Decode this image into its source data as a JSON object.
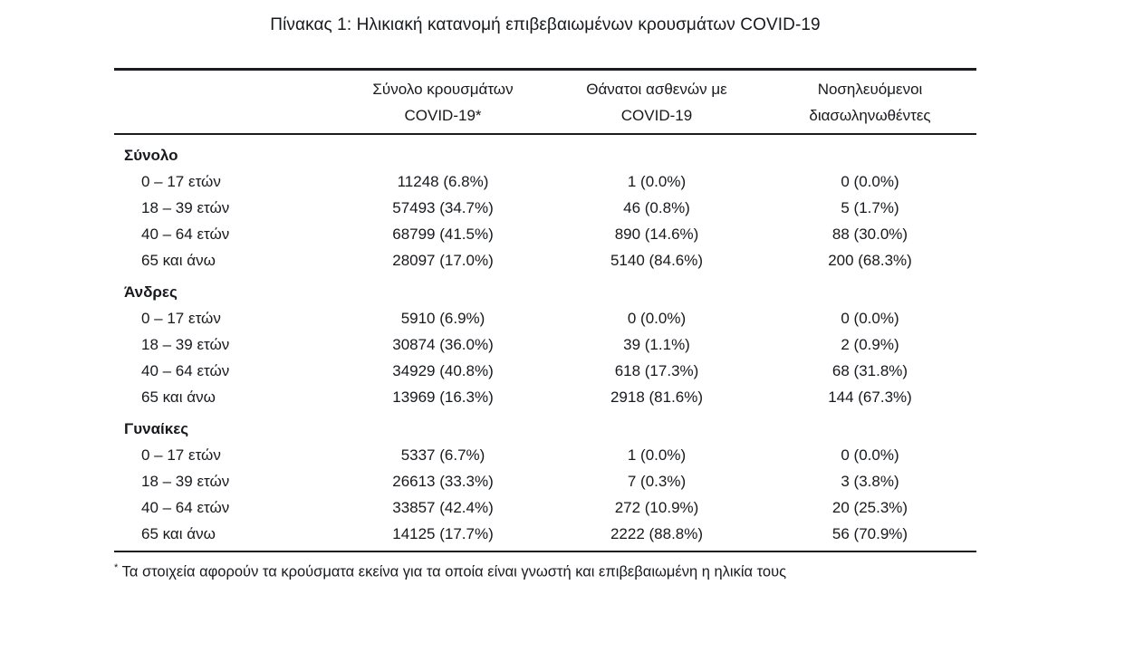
{
  "title": "Πίνακας 1: Ηλικιακή κατανομή επιβεβαιωμένων κρουσμάτων COVID-19",
  "text_color": "#17191d",
  "table": {
    "columns": [
      {
        "line1": "Σύνολο κρουσμάτων",
        "line2": "COVID-19*"
      },
      {
        "line1": "Θάνατοι ασθενών με",
        "line2": "COVID-19"
      },
      {
        "line1": "Νοσηλευόμενοι",
        "line2": "διασωληνωθέντες"
      }
    ],
    "sections": [
      {
        "label": "Σύνολο",
        "rows": [
          {
            "label": "0 – 17 ετών",
            "cases": "11248 (6.8%)",
            "deaths": "1 (0.0%)",
            "intubated": "0 (0.0%)"
          },
          {
            "label": "18 – 39 ετών",
            "cases": "57493 (34.7%)",
            "deaths": "46 (0.8%)",
            "intubated": "5 (1.7%)"
          },
          {
            "label": "40 – 64 ετών",
            "cases": "68799 (41.5%)",
            "deaths": "890 (14.6%)",
            "intubated": "88 (30.0%)"
          },
          {
            "label": "65 και άνω",
            "cases": "28097 (17.0%)",
            "deaths": "5140 (84.6%)",
            "intubated": "200 (68.3%)"
          }
        ]
      },
      {
        "label": "Άνδρες",
        "rows": [
          {
            "label": "0 – 17 ετών",
            "cases": "5910 (6.9%)",
            "deaths": "0 (0.0%)",
            "intubated": "0 (0.0%)"
          },
          {
            "label": "18 – 39 ετών",
            "cases": "30874 (36.0%)",
            "deaths": "39 (1.1%)",
            "intubated": "2 (0.9%)"
          },
          {
            "label": "40 – 64 ετών",
            "cases": "34929 (40.8%)",
            "deaths": "618 (17.3%)",
            "intubated": "68 (31.8%)"
          },
          {
            "label": "65 και άνω",
            "cases": "13969 (16.3%)",
            "deaths": "2918 (81.6%)",
            "intubated": "144 (67.3%)"
          }
        ]
      },
      {
        "label": "Γυναίκες",
        "rows": [
          {
            "label": "0 – 17 ετών",
            "cases": "5337 (6.7%)",
            "deaths": "1 (0.0%)",
            "intubated": "0 (0.0%)"
          },
          {
            "label": "18 – 39 ετών",
            "cases": "26613 (33.3%)",
            "deaths": "7 (0.3%)",
            "intubated": "3 (3.8%)"
          },
          {
            "label": "40 – 64 ετών",
            "cases": "33857 (42.4%)",
            "deaths": "272 (10.9%)",
            "intubated": "20 (25.3%)"
          },
          {
            "label": "65 και άνω",
            "cases": "14125 (17.7%)",
            "deaths": "2222 (88.8%)",
            "intubated": "56 (70.9%)"
          }
        ]
      }
    ]
  },
  "footnote": {
    "marker": "*",
    "text": " Τα στοιχεία αφορούν τα κρούσματα εκείνα για τα οποία είναι γνωστή και επιβεβαιωμένη η ηλικία τους"
  }
}
